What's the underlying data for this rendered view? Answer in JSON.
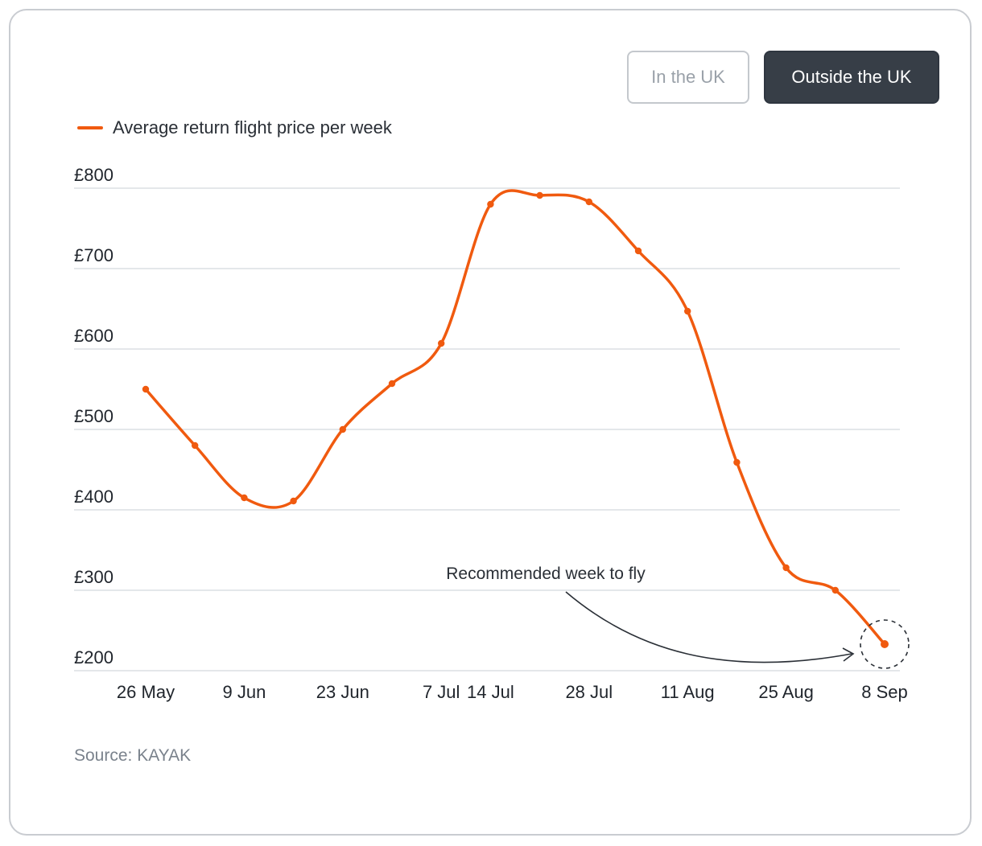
{
  "toggles": {
    "uk_label": "In the UK",
    "outside_label": "Outside the UK",
    "selected": "outside"
  },
  "legend": {
    "label": "Average return flight price per week"
  },
  "annotation": {
    "text": "Recommended week to fly"
  },
  "source": "Source: KAYAK",
  "colors": {
    "line": "#f05a0f",
    "grid": "#dcdfe3",
    "active_toggle": "#373e47"
  },
  "chart_data": {
    "type": "line",
    "ylim": [
      200,
      800
    ],
    "yticks": [
      800,
      700,
      600,
      500,
      400,
      300,
      200
    ],
    "ytick_labels": [
      "£800",
      "£700",
      "£600",
      "£500",
      "£400",
      "£300",
      "£200"
    ],
    "xtick_labels": [
      "26 May",
      "9 Jun",
      "23 Jun",
      "7 Jul",
      "14 Jul",
      "28 Jul",
      "11 Aug",
      "25 Aug",
      "8 Sep"
    ],
    "xtick_weeks": [
      0,
      2,
      4,
      6,
      7,
      9,
      11,
      13,
      15
    ],
    "grid": true,
    "legend_position": "top-left",
    "series": [
      {
        "name": "Average return flight price per week",
        "weeks": [
          "26 May",
          "2 Jun",
          "9 Jun",
          "16 Jun",
          "23 Jun",
          "30 Jun",
          "7 Jul",
          "14 Jul",
          "21 Jul",
          "28 Jul",
          "4 Aug",
          "11 Aug",
          "18 Aug",
          "25 Aug",
          "1 Sep",
          "8 Sep"
        ],
        "values": [
          550,
          480,
          415,
          411,
          500,
          557,
          607,
          780,
          791,
          783,
          722,
          647,
          459,
          328,
          300,
          233
        ]
      }
    ],
    "highlight": {
      "week": "8 Sep",
      "label": "Recommended week to fly"
    }
  }
}
